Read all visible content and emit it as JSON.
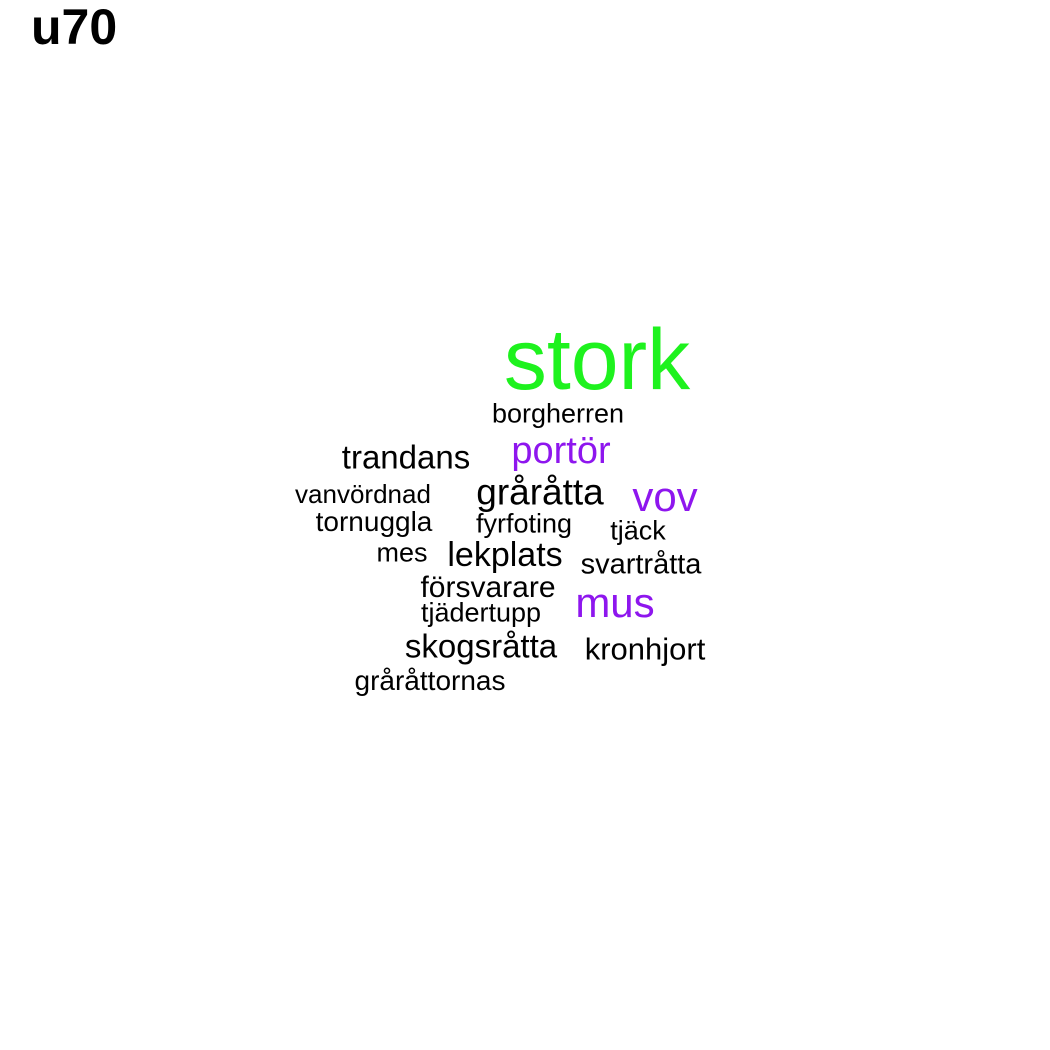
{
  "title": "u70",
  "colors": {
    "background": "#ffffff",
    "title": "#000000",
    "green": "#1ef21e",
    "purple": "#8e16ee",
    "black": "#000000"
  },
  "words": {
    "stork": {
      "text": "stork",
      "color": "#1ef21e"
    },
    "borgherren": {
      "text": "borgherren",
      "color": "#000000"
    },
    "trandans": {
      "text": "trandans",
      "color": "#000000"
    },
    "portor": {
      "text": "portör",
      "color": "#8e16ee"
    },
    "vanvordnad": {
      "text": "vanvördnad",
      "color": "#000000"
    },
    "grratta": {
      "text": "gråråtta",
      "color": "#000000"
    },
    "vov": {
      "text": "vov",
      "color": "#8e16ee"
    },
    "tornuggla": {
      "text": "tornuggla",
      "color": "#000000"
    },
    "fyrfoting": {
      "text": "fyrfoting",
      "color": "#000000"
    },
    "tjack": {
      "text": "tjäck",
      "color": "#000000"
    },
    "mes": {
      "text": "mes",
      "color": "#000000"
    },
    "lekplats": {
      "text": "lekplats",
      "color": "#000000"
    },
    "svartratta": {
      "text": "svartråtta",
      "color": "#000000"
    },
    "forsvarare": {
      "text": "försvarare",
      "color": "#000000"
    },
    "mus": {
      "text": "mus",
      "color": "#8e16ee"
    },
    "tjadertupp": {
      "text": "tjädertupp",
      "color": "#000000"
    },
    "skogsratta": {
      "text": "skogsråtta",
      "color": "#000000"
    },
    "kronhjort": {
      "text": "kronhjort",
      "color": "#000000"
    },
    "graattornas": {
      "text": "gråråttornas",
      "color": "#000000"
    }
  }
}
